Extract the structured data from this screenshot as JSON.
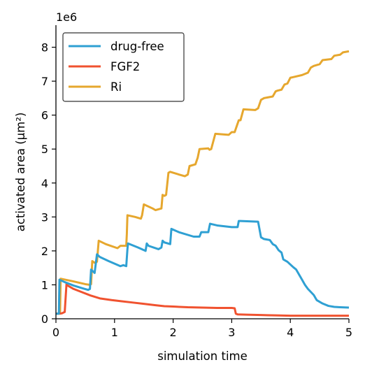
{
  "chart_data": {
    "type": "line",
    "title": "",
    "xlabel": "simulation time",
    "ylabel": "activated area (μm²)",
    "y_offset_label": "1e6",
    "xlim": [
      0,
      5
    ],
    "ylim": [
      0,
      8.65
    ],
    "x_ticks": [
      0,
      1,
      2,
      3,
      4,
      5
    ],
    "y_ticks": [
      0,
      1,
      2,
      3,
      4,
      5,
      6,
      7,
      8
    ],
    "grid": false,
    "legend_position": "top-left",
    "series": [
      {
        "name": "drug-free",
        "color": "#2fa0d3",
        "x": [
          0,
          0.05,
          0.06,
          0.15,
          0.3,
          0.45,
          0.55,
          0.58,
          0.6,
          0.63,
          0.66,
          0.7,
          0.73,
          0.75,
          0.9,
          1.1,
          1.15,
          1.2,
          1.22,
          1.23,
          1.4,
          1.53,
          1.55,
          1.58,
          1.75,
          1.8,
          1.82,
          1.85,
          1.95,
          1.97,
          2.1,
          2.35,
          2.45,
          2.48,
          2.6,
          2.63,
          2.75,
          3.0,
          3.1,
          3.12,
          3.15,
          3.45,
          3.5,
          3.55,
          3.65,
          3.7,
          3.75,
          3.8,
          3.85,
          3.88,
          3.95,
          4.0,
          4.05,
          4.1,
          4.15,
          4.2,
          4.25,
          4.3,
          4.4,
          4.45,
          4.55,
          4.65,
          4.75,
          4.85,
          5.0
        ],
        "y": [
          0.15,
          0.15,
          1.15,
          1.08,
          0.98,
          0.9,
          0.85,
          0.88,
          1.45,
          1.4,
          1.35,
          1.9,
          1.85,
          1.82,
          1.7,
          1.55,
          1.58,
          1.55,
          2.05,
          2.22,
          2.1,
          2.0,
          2.22,
          2.15,
          2.05,
          2.1,
          2.3,
          2.25,
          2.2,
          2.65,
          2.55,
          2.42,
          2.42,
          2.55,
          2.55,
          2.8,
          2.75,
          2.7,
          2.7,
          2.88,
          2.88,
          2.86,
          2.4,
          2.35,
          2.32,
          2.2,
          2.15,
          2.02,
          1.95,
          1.75,
          1.68,
          1.6,
          1.52,
          1.45,
          1.3,
          1.15,
          1.0,
          0.88,
          0.7,
          0.55,
          0.45,
          0.38,
          0.35,
          0.34,
          0.33
        ]
      },
      {
        "name": "FGF2",
        "color": "#f0522f",
        "x": [
          0,
          0.1,
          0.15,
          0.18,
          0.2,
          0.3,
          0.45,
          0.6,
          0.75,
          0.95,
          1.0,
          1.1,
          1.3,
          1.5,
          1.7,
          1.85,
          2.0,
          2.25,
          2.5,
          2.75,
          3.0,
          3.05,
          3.07,
          3.1,
          3.25,
          3.5,
          3.75,
          4.0,
          4.25,
          4.5,
          4.75,
          5.0
        ],
        "y": [
          0.15,
          0.16,
          0.2,
          1.02,
          0.98,
          0.88,
          0.78,
          0.68,
          0.6,
          0.55,
          0.54,
          0.52,
          0.48,
          0.44,
          0.4,
          0.37,
          0.36,
          0.34,
          0.33,
          0.32,
          0.32,
          0.31,
          0.15,
          0.13,
          0.12,
          0.11,
          0.1,
          0.09,
          0.09,
          0.09,
          0.09,
          0.09
        ]
      },
      {
        "name": "Ri",
        "color": "#e6a72e",
        "x": [
          0,
          0.07,
          0.08,
          0.3,
          0.5,
          0.58,
          0.6,
          0.62,
          0.66,
          0.7,
          0.73,
          0.85,
          1.05,
          1.1,
          1.2,
          1.21,
          1.22,
          1.35,
          1.45,
          1.47,
          1.5,
          1.65,
          1.7,
          1.8,
          1.82,
          1.85,
          1.88,
          1.92,
          1.95,
          2.1,
          2.2,
          2.25,
          2.28,
          2.38,
          2.42,
          2.45,
          2.6,
          2.62,
          2.65,
          2.72,
          2.95,
          3.0,
          3.05,
          3.12,
          3.15,
          3.2,
          3.4,
          3.45,
          3.5,
          3.55,
          3.7,
          3.75,
          3.78,
          3.85,
          3.9,
          3.95,
          4.0,
          4.05,
          4.2,
          4.3,
          4.35,
          4.4,
          4.5,
          4.55,
          4.7,
          4.75,
          4.85,
          4.9,
          5.0
        ],
        "y": [
          0.15,
          0.15,
          1.18,
          1.1,
          1.02,
          1.0,
          1.02,
          1.7,
          1.65,
          1.68,
          2.3,
          2.2,
          2.08,
          2.15,
          2.15,
          2.5,
          3.05,
          3.0,
          2.95,
          3.05,
          3.37,
          3.25,
          3.2,
          3.25,
          3.65,
          3.62,
          3.65,
          4.3,
          4.33,
          4.25,
          4.2,
          4.25,
          4.5,
          4.55,
          4.75,
          5.0,
          5.02,
          4.98,
          5.0,
          5.45,
          5.42,
          5.5,
          5.5,
          5.85,
          5.85,
          6.17,
          6.15,
          6.2,
          6.45,
          6.5,
          6.55,
          6.7,
          6.72,
          6.75,
          6.9,
          6.93,
          7.1,
          7.12,
          7.18,
          7.25,
          7.4,
          7.45,
          7.5,
          7.62,
          7.65,
          7.75,
          7.78,
          7.85,
          7.88
        ]
      }
    ]
  }
}
